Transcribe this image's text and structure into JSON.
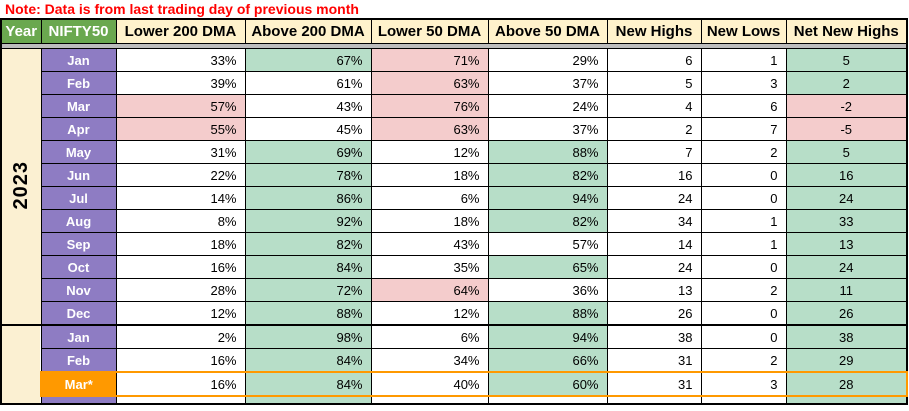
{
  "note": "Note: Data is from last trading day of previous month",
  "colors": {
    "note_red": "#ff0000",
    "header_green": "#6aa84f",
    "header_cream": "#fff2cc",
    "year_cream": "#fbf0d2",
    "month_purple": "#8e7cc3",
    "cell_green": "#b7dec8",
    "cell_pink": "#f4cccc",
    "highlight_orange": "#ff9900",
    "divider_gray": "#bdbdbd"
  },
  "table": {
    "headers": [
      "Year",
      "NIFTY50",
      "Lower 200 DMA",
      "Above 200 DMA",
      "Lower 50 DMA",
      "Above 50 DMA",
      "New Highs",
      "New Lows",
      "Net New Highs"
    ],
    "groups": [
      {
        "year": "2023",
        "rows": [
          {
            "month": "Jan",
            "values": [
              "33%",
              "67%",
              "71%",
              "29%",
              "6",
              "1",
              "5"
            ],
            "bgs": [
              "w",
              "g",
              "p",
              "w",
              "w",
              "w",
              "g"
            ],
            "highlight": false
          },
          {
            "month": "Feb",
            "values": [
              "39%",
              "61%",
              "63%",
              "37%",
              "5",
              "3",
              "2"
            ],
            "bgs": [
              "w",
              "w",
              "p",
              "w",
              "w",
              "w",
              "g"
            ],
            "highlight": false
          },
          {
            "month": "Mar",
            "values": [
              "57%",
              "43%",
              "76%",
              "24%",
              "4",
              "6",
              "-2"
            ],
            "bgs": [
              "p",
              "w",
              "p",
              "w",
              "w",
              "w",
              "p"
            ],
            "highlight": false
          },
          {
            "month": "Apr",
            "values": [
              "55%",
              "45%",
              "63%",
              "37%",
              "2",
              "7",
              "-5"
            ],
            "bgs": [
              "p",
              "w",
              "p",
              "w",
              "w",
              "w",
              "p"
            ],
            "highlight": false
          },
          {
            "month": "May",
            "values": [
              "31%",
              "69%",
              "12%",
              "88%",
              "7",
              "2",
              "5"
            ],
            "bgs": [
              "w",
              "g",
              "w",
              "g",
              "w",
              "w",
              "g"
            ],
            "highlight": false
          },
          {
            "month": "Jun",
            "values": [
              "22%",
              "78%",
              "18%",
              "82%",
              "16",
              "0",
              "16"
            ],
            "bgs": [
              "w",
              "g",
              "w",
              "g",
              "w",
              "w",
              "g"
            ],
            "highlight": false
          },
          {
            "month": "Jul",
            "values": [
              "14%",
              "86%",
              "6%",
              "94%",
              "24",
              "0",
              "24"
            ],
            "bgs": [
              "w",
              "g",
              "w",
              "g",
              "w",
              "w",
              "g"
            ],
            "highlight": false
          },
          {
            "month": "Aug",
            "values": [
              "8%",
              "92%",
              "18%",
              "82%",
              "34",
              "1",
              "33"
            ],
            "bgs": [
              "w",
              "g",
              "w",
              "g",
              "w",
              "w",
              "g"
            ],
            "highlight": false
          },
          {
            "month": "Sep",
            "values": [
              "18%",
              "82%",
              "43%",
              "57%",
              "14",
              "1",
              "13"
            ],
            "bgs": [
              "w",
              "g",
              "w",
              "w",
              "w",
              "w",
              "g"
            ],
            "highlight": false
          },
          {
            "month": "Oct",
            "values": [
              "16%",
              "84%",
              "35%",
              "65%",
              "24",
              "0",
              "24"
            ],
            "bgs": [
              "w",
              "g",
              "w",
              "g",
              "w",
              "w",
              "g"
            ],
            "highlight": false
          },
          {
            "month": "Nov",
            "values": [
              "28%",
              "72%",
              "64%",
              "36%",
              "13",
              "2",
              "11"
            ],
            "bgs": [
              "w",
              "g",
              "p",
              "w",
              "w",
              "w",
              "g"
            ],
            "highlight": false
          },
          {
            "month": "Dec",
            "values": [
              "12%",
              "88%",
              "12%",
              "88%",
              "26",
              "0",
              "26"
            ],
            "bgs": [
              "w",
              "g",
              "w",
              "g",
              "w",
              "w",
              "g"
            ],
            "highlight": false
          }
        ]
      },
      {
        "year": "",
        "rows": [
          {
            "month": "Jan",
            "values": [
              "2%",
              "98%",
              "6%",
              "94%",
              "38",
              "0",
              "38"
            ],
            "bgs": [
              "w",
              "g",
              "w",
              "g",
              "w",
              "w",
              "g"
            ],
            "highlight": false
          },
          {
            "month": "Feb",
            "values": [
              "16%",
              "84%",
              "34%",
              "66%",
              "31",
              "2",
              "29"
            ],
            "bgs": [
              "w",
              "g",
              "w",
              "g",
              "w",
              "w",
              "g"
            ],
            "highlight": false
          },
          {
            "month": "Mar*",
            "values": [
              "16%",
              "84%",
              "40%",
              "60%",
              "31",
              "3",
              "28"
            ],
            "bgs": [
              "w",
              "g",
              "w",
              "g",
              "w",
              "w",
              "g"
            ],
            "highlight": true
          }
        ]
      }
    ]
  }
}
